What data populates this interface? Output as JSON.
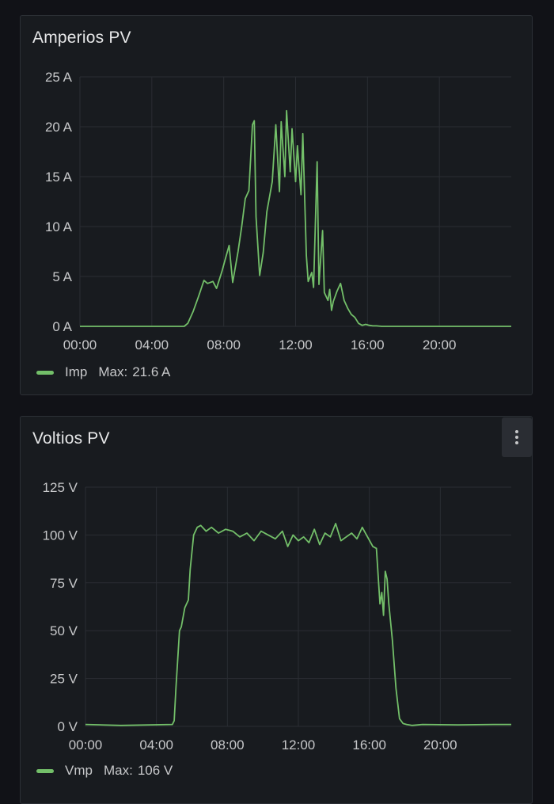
{
  "colors": {
    "series": "#73bf69",
    "grid": "#2a2d33",
    "background": "#181b1f"
  },
  "panels": [
    {
      "title": "Amperios PV",
      "legend": {
        "name": "Imp",
        "stat_label": "Max:",
        "stat_value": "21.6 A"
      }
    },
    {
      "title": "Voltios PV",
      "legend": {
        "name": "Vmp",
        "stat_label": "Max:",
        "stat_value": "106 V"
      },
      "menu_icon": "kebab-menu-icon"
    }
  ],
  "chart_data": [
    {
      "type": "line",
      "title": "Amperios PV",
      "x_ticks": [
        "00:00",
        "04:00",
        "08:00",
        "12:00",
        "16:00",
        "20:00"
      ],
      "y_ticks": [
        "0 A",
        "5 A",
        "10 A",
        "15 A",
        "20 A",
        "25 A"
      ],
      "xlim": [
        0,
        24
      ],
      "ylim": [
        0,
        25
      ],
      "grid": true,
      "legend_position": "bottom-left",
      "series": [
        {
          "name": "Imp",
          "x": [
            0,
            5.8,
            6.0,
            6.3,
            6.6,
            6.9,
            7.1,
            7.4,
            7.6,
            7.9,
            8.1,
            8.3,
            8.5,
            8.8,
            9.0,
            9.2,
            9.4,
            9.6,
            9.7,
            9.8,
            10.0,
            10.2,
            10.4,
            10.7,
            10.9,
            11.1,
            11.2,
            11.4,
            11.5,
            11.7,
            11.8,
            12.0,
            12.1,
            12.3,
            12.4,
            12.6,
            12.7,
            12.9,
            13.0,
            13.2,
            13.3,
            13.5,
            13.6,
            13.8,
            13.9,
            14.0,
            14.1,
            14.3,
            14.5,
            14.7,
            14.9,
            15.1,
            15.3,
            15.5,
            15.7,
            15.9,
            16.1,
            16.3,
            16.5,
            16.8,
            17.2,
            24
          ],
          "y": [
            0,
            0,
            0.3,
            1.5,
            3,
            4.6,
            4.3,
            4.5,
            3.8,
            5.5,
            6.8,
            8.1,
            4.4,
            7.5,
            10,
            12.8,
            13.6,
            20.2,
            20.6,
            11,
            5.1,
            7.4,
            11.5,
            14.5,
            20.2,
            13.5,
            20.5,
            15,
            21.6,
            15.5,
            19.8,
            14.5,
            18.1,
            13.2,
            19.3,
            7.1,
            4.5,
            5.4,
            3.9,
            16.5,
            4.2,
            9.6,
            3.4,
            2.6,
            3.7,
            1.6,
            2.5,
            3.5,
            4.3,
            2.6,
            1.8,
            1.2,
            0.9,
            0.3,
            0.1,
            0.2,
            0.1,
            0.05,
            0.05,
            0,
            0,
            0
          ]
        }
      ]
    },
    {
      "type": "line",
      "title": "Voltios PV",
      "x_ticks": [
        "00:00",
        "04:00",
        "08:00",
        "12:00",
        "16:00",
        "20:00"
      ],
      "y_ticks": [
        "0 V",
        "25 V",
        "50 V",
        "75 V",
        "100 V",
        "125 V"
      ],
      "xlim": [
        0,
        24
      ],
      "ylim": [
        0,
        125
      ],
      "grid": true,
      "legend_position": "bottom-left",
      "series": [
        {
          "name": "Vmp",
          "x": [
            0,
            2,
            4.9,
            5.0,
            5.1,
            5.3,
            5.4,
            5.6,
            5.8,
            5.9,
            6.1,
            6.3,
            6.5,
            6.8,
            7.1,
            7.5,
            7.9,
            8.3,
            8.7,
            9.1,
            9.5,
            9.9,
            10.3,
            10.7,
            11.1,
            11.4,
            11.7,
            12.0,
            12.3,
            12.6,
            12.9,
            13.2,
            13.5,
            13.8,
            14.1,
            14.4,
            14.7,
            15.0,
            15.3,
            15.6,
            15.9,
            16.2,
            16.4,
            16.6,
            16.7,
            16.8,
            16.9,
            17.0,
            17.1,
            17.3,
            17.5,
            17.7,
            17.9,
            18.1,
            18.4,
            19,
            21,
            23,
            24
          ],
          "y": [
            1,
            0.5,
            1,
            3,
            20,
            50,
            52,
            62,
            66,
            82,
            100,
            104,
            105,
            102,
            104,
            101,
            103,
            102,
            99,
            101,
            97,
            102,
            100,
            98,
            102,
            94,
            100,
            97,
            99,
            96,
            103,
            95,
            101,
            99,
            106,
            97,
            99,
            101,
            98,
            104,
            99,
            94,
            93,
            64,
            70,
            58,
            81,
            77,
            64,
            45,
            20,
            4,
            1.5,
            1,
            0.5,
            1,
            0.8,
            1,
            1
          ]
        }
      ]
    }
  ]
}
